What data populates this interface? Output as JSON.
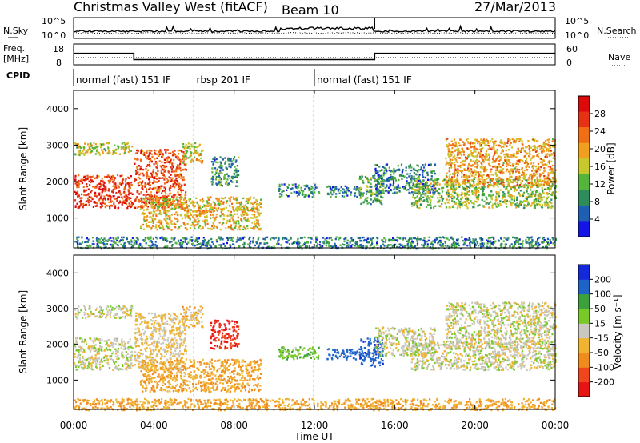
{
  "chart_data": {
    "type": "heatmap",
    "title": "Christmas Valley West (fitACF)",
    "beam_label": "Beam 10",
    "date": "27/Mar/2013",
    "xlabel": "Time UT",
    "x_ticks": [
      "00:00",
      "04:00",
      "08:00",
      "12:00",
      "16:00",
      "20:00",
      "00:00"
    ],
    "xlim_hours": [
      0,
      24
    ],
    "nsky": {
      "label": "N.Sky",
      "ticks": [
        "10^5",
        "10^0"
      ],
      "right_label": "N.Search",
      "right_ticks": [
        "10^5",
        "10^0"
      ]
    },
    "freq": {
      "label": "Freq. [MHz]",
      "ticks": [
        18,
        8
      ],
      "right_label": "Nave",
      "right_ticks": [
        60,
        0
      ],
      "steps": [
        {
          "start_h": 0,
          "end_h": 3.0,
          "value_mhz": 13.5
        },
        {
          "start_h": 3.0,
          "end_h": 15.0,
          "value_mhz": 10.5
        },
        {
          "start_h": 15.0,
          "end_h": 24,
          "value_mhz": 13.5
        }
      ]
    },
    "cpid": {
      "label": "CPID",
      "segments": [
        {
          "start_h": 0,
          "label": "normal (fast) 151 IF"
        },
        {
          "start_h": 6.0,
          "label": "rbsp 201 IF"
        },
        {
          "start_h": 12.0,
          "label": "normal (fast) 151 IF"
        }
      ]
    },
    "power_panel": {
      "ylabel": "Slant Range [km]",
      "y_ticks": [
        1000,
        2000,
        3000,
        4000
      ],
      "ylim": [
        180,
        4500
      ],
      "colorbar_label": "Power [dB]",
      "colorbar_ticks": [
        "4",
        "8",
        "12",
        "16",
        "20",
        "24",
        "28"
      ],
      "colormap": [
        "#1414e6",
        "#1e5fb4",
        "#2d8c5a",
        "#55b43c",
        "#c8c82d",
        "#f0a01e",
        "#f06e14",
        "#e63214",
        "#dc0a0a"
      ]
    },
    "velocity_panel": {
      "ylabel": "Slant Range [km]",
      "y_ticks": [
        1000,
        2000,
        3000,
        4000
      ],
      "ylim": [
        180,
        4500
      ],
      "colorbar_label": "Velocity [m s⁻¹]",
      "colorbar_ticks": [
        "200",
        "100",
        "50",
        "15",
        "-15",
        "-50",
        "-100",
        "-200"
      ],
      "colormap": [
        "#1428dc",
        "#1e64c8",
        "#3ca03c",
        "#78c828",
        "#c8c8c0",
        "#f0b432",
        "#f08c1e",
        "#f0461e",
        "#e61414"
      ]
    },
    "echo_regions": [
      {
        "t0": 0.0,
        "t1": 2.9,
        "r0": 1300,
        "r1": 2200,
        "power": 27,
        "velocity": 0
      },
      {
        "t0": 0.0,
        "t1": 2.9,
        "r0": 2750,
        "r1": 3100,
        "power": 16,
        "velocity": 0
      },
      {
        "t0": 3.0,
        "t1": 5.6,
        "r0": 1300,
        "r1": 2900,
        "power": 25,
        "velocity": -20
      },
      {
        "t0": 3.3,
        "t1": 9.3,
        "r0": 700,
        "r1": 1600,
        "power": 18,
        "velocity": -45
      },
      {
        "t0": 5.4,
        "t1": 6.4,
        "r0": 2500,
        "r1": 3100,
        "power": 17,
        "velocity": -30
      },
      {
        "t0": 6.8,
        "t1": 8.2,
        "r0": 1900,
        "r1": 2700,
        "power": 9,
        "velocity": -200
      },
      {
        "t0": 10.2,
        "t1": 12.2,
        "r0": 1600,
        "r1": 1950,
        "power": 8,
        "velocity": 40
      },
      {
        "t0": 12.6,
        "t1": 14.3,
        "r0": 1600,
        "r1": 1900,
        "power": 8,
        "velocity": 130
      },
      {
        "t0": 14.2,
        "t1": 15.4,
        "r0": 1400,
        "r1": 2200,
        "power": 12,
        "velocity": 180
      },
      {
        "t0": 15.0,
        "t1": 18.0,
        "r0": 1700,
        "r1": 2500,
        "power": 8,
        "velocity": 0
      },
      {
        "t0": 16.8,
        "t1": 24.0,
        "r0": 1300,
        "r1": 2100,
        "power": 14,
        "velocity": 0
      },
      {
        "t0": 18.5,
        "t1": 24.0,
        "r0": 1900,
        "r1": 3200,
        "power": 20,
        "velocity": 0
      },
      {
        "t0": 0.0,
        "t1": 24.0,
        "r0": 180,
        "r1": 500,
        "power": 8,
        "velocity": -45
      }
    ]
  }
}
